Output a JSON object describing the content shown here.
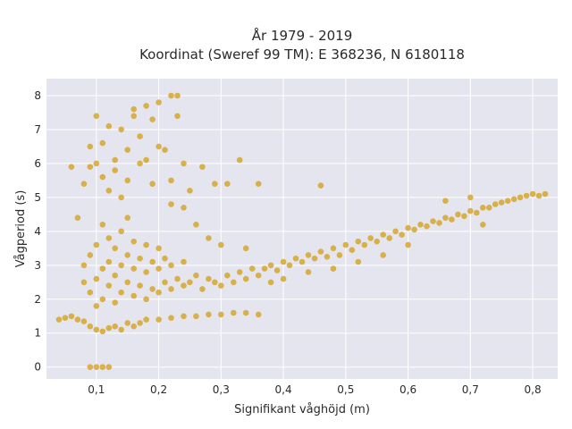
{
  "chart_data": {
    "type": "scatter",
    "title": "År 1979 - 2019",
    "subtitle": "Koordinat (Sweref 99 TM): E 368236, N 6180118",
    "xlabel": "Signifikant våghöjd (m)",
    "ylabel": "Vågperiod (s)",
    "xlim": [
      0.02,
      0.84
    ],
    "ylim": [
      -0.35,
      8.5
    ],
    "x_ticks": [
      0.1,
      0.2,
      0.3,
      0.4,
      0.5,
      0.6,
      0.7,
      0.8
    ],
    "x_tick_labels": [
      "0,1",
      "0,2",
      "0,3",
      "0,4",
      "0,5",
      "0,6",
      "0,7",
      "0,8"
    ],
    "y_ticks": [
      0,
      1,
      2,
      3,
      4,
      5,
      6,
      7,
      8
    ],
    "y_tick_labels": [
      "0",
      "1",
      "2",
      "3",
      "4",
      "5",
      "6",
      "7",
      "8"
    ],
    "grid": true,
    "legend": "none",
    "colors": {
      "marker": "#d4a21f",
      "plot_bg": "#e5e5ef",
      "grid": "#ffffff"
    },
    "series": [
      {
        "points": [
          [
            0.04,
            1.4
          ],
          [
            0.05,
            1.45
          ],
          [
            0.06,
            1.5
          ],
          [
            0.07,
            1.4
          ],
          [
            0.08,
            1.35
          ],
          [
            0.06,
            5.9
          ],
          [
            0.09,
            1.2
          ],
          [
            0.1,
            1.1
          ],
          [
            0.11,
            1.05
          ],
          [
            0.12,
            1.15
          ],
          [
            0.13,
            1.2
          ],
          [
            0.14,
            1.1
          ],
          [
            0.15,
            1.3
          ],
          [
            0.16,
            1.2
          ],
          [
            0.17,
            1.3
          ],
          [
            0.18,
            1.4
          ],
          [
            0.2,
            1.4
          ],
          [
            0.22,
            1.45
          ],
          [
            0.24,
            1.5
          ],
          [
            0.26,
            1.5
          ],
          [
            0.28,
            1.55
          ],
          [
            0.3,
            1.55
          ],
          [
            0.32,
            1.6
          ],
          [
            0.34,
            1.6
          ],
          [
            0.36,
            1.55
          ],
          [
            0.08,
            2.5
          ],
          [
            0.08,
            3.0
          ],
          [
            0.09,
            2.2
          ],
          [
            0.09,
            3.3
          ],
          [
            0.1,
            1.8
          ],
          [
            0.1,
            2.6
          ],
          [
            0.1,
            3.6
          ],
          [
            0.11,
            2.0
          ],
          [
            0.11,
            2.9
          ],
          [
            0.11,
            4.2
          ],
          [
            0.12,
            2.4
          ],
          [
            0.12,
            3.1
          ],
          [
            0.12,
            3.8
          ],
          [
            0.13,
            1.9
          ],
          [
            0.13,
            2.7
          ],
          [
            0.13,
            3.5
          ],
          [
            0.14,
            2.2
          ],
          [
            0.14,
            3.0
          ],
          [
            0.14,
            4.0
          ],
          [
            0.15,
            2.5
          ],
          [
            0.15,
            3.3
          ],
          [
            0.15,
            4.4
          ],
          [
            0.16,
            2.1
          ],
          [
            0.16,
            2.9
          ],
          [
            0.16,
            3.7
          ],
          [
            0.17,
            2.4
          ],
          [
            0.17,
            3.2
          ],
          [
            0.18,
            2.0
          ],
          [
            0.18,
            2.8
          ],
          [
            0.18,
            3.6
          ],
          [
            0.19,
            2.3
          ],
          [
            0.19,
            3.1
          ],
          [
            0.2,
            2.2
          ],
          [
            0.2,
            2.9
          ],
          [
            0.2,
            3.5
          ],
          [
            0.21,
            2.5
          ],
          [
            0.21,
            3.2
          ],
          [
            0.22,
            2.3
          ],
          [
            0.22,
            3.0
          ],
          [
            0.23,
            2.6
          ],
          [
            0.24,
            2.4
          ],
          [
            0.24,
            3.1
          ],
          [
            0.25,
            2.5
          ],
          [
            0.26,
            2.7
          ],
          [
            0.27,
            2.3
          ],
          [
            0.28,
            2.6
          ],
          [
            0.29,
            2.5
          ],
          [
            0.3,
            2.4
          ],
          [
            0.31,
            2.7
          ],
          [
            0.32,
            2.5
          ],
          [
            0.33,
            2.8
          ],
          [
            0.34,
            2.6
          ],
          [
            0.35,
            2.9
          ],
          [
            0.36,
            2.7
          ],
          [
            0.07,
            4.4
          ],
          [
            0.08,
            5.4
          ],
          [
            0.09,
            5.9
          ],
          [
            0.09,
            6.5
          ],
          [
            0.1,
            7.4
          ],
          [
            0.1,
            6.0
          ],
          [
            0.11,
            6.6
          ],
          [
            0.11,
            5.6
          ],
          [
            0.12,
            7.1
          ],
          [
            0.12,
            5.2
          ],
          [
            0.13,
            6.1
          ],
          [
            0.13,
            5.8
          ],
          [
            0.14,
            7.0
          ],
          [
            0.14,
            5.0
          ],
          [
            0.15,
            6.4
          ],
          [
            0.15,
            5.5
          ],
          [
            0.16,
            7.4
          ],
          [
            0.16,
            7.6
          ],
          [
            0.17,
            6.8
          ],
          [
            0.17,
            6.0
          ],
          [
            0.18,
            7.7
          ],
          [
            0.18,
            6.1
          ],
          [
            0.19,
            7.3
          ],
          [
            0.19,
            5.4
          ],
          [
            0.2,
            7.8
          ],
          [
            0.2,
            6.5
          ],
          [
            0.21,
            6.4
          ],
          [
            0.22,
            8.0
          ],
          [
            0.23,
            8.0
          ],
          [
            0.23,
            7.4
          ],
          [
            0.22,
            5.5
          ],
          [
            0.24,
            6.0
          ],
          [
            0.25,
            5.2
          ],
          [
            0.27,
            5.9
          ],
          [
            0.29,
            5.4
          ],
          [
            0.31,
            5.4
          ],
          [
            0.33,
            6.1
          ],
          [
            0.26,
            4.2
          ],
          [
            0.28,
            3.8
          ],
          [
            0.22,
            4.8
          ],
          [
            0.24,
            4.7
          ],
          [
            0.36,
            5.4
          ],
          [
            0.46,
            5.35
          ],
          [
            0.3,
            3.6
          ],
          [
            0.34,
            3.5
          ],
          [
            0.37,
            2.9
          ],
          [
            0.38,
            3.0
          ],
          [
            0.39,
            2.85
          ],
          [
            0.4,
            3.1
          ],
          [
            0.41,
            3.0
          ],
          [
            0.42,
            3.2
          ],
          [
            0.43,
            3.1
          ],
          [
            0.44,
            3.3
          ],
          [
            0.45,
            3.2
          ],
          [
            0.46,
            3.4
          ],
          [
            0.47,
            3.25
          ],
          [
            0.48,
            3.5
          ],
          [
            0.49,
            3.3
          ],
          [
            0.5,
            3.6
          ],
          [
            0.51,
            3.45
          ],
          [
            0.52,
            3.7
          ],
          [
            0.53,
            3.6
          ],
          [
            0.54,
            3.8
          ],
          [
            0.55,
            3.7
          ],
          [
            0.56,
            3.9
          ],
          [
            0.57,
            3.8
          ],
          [
            0.58,
            4.0
          ],
          [
            0.59,
            3.9
          ],
          [
            0.6,
            4.1
          ],
          [
            0.61,
            4.05
          ],
          [
            0.62,
            4.2
          ],
          [
            0.63,
            4.15
          ],
          [
            0.64,
            4.3
          ],
          [
            0.65,
            4.25
          ],
          [
            0.66,
            4.4
          ],
          [
            0.67,
            4.35
          ],
          [
            0.68,
            4.5
          ],
          [
            0.69,
            4.45
          ],
          [
            0.7,
            4.6
          ],
          [
            0.71,
            4.55
          ],
          [
            0.72,
            4.7
          ],
          [
            0.73,
            4.7
          ],
          [
            0.74,
            4.8
          ],
          [
            0.75,
            4.85
          ],
          [
            0.76,
            4.9
          ],
          [
            0.77,
            4.95
          ],
          [
            0.78,
            5.0
          ],
          [
            0.79,
            5.05
          ],
          [
            0.8,
            5.1
          ],
          [
            0.81,
            5.05
          ],
          [
            0.82,
            5.1
          ],
          [
            0.66,
            4.9
          ],
          [
            0.7,
            5.0
          ],
          [
            0.72,
            4.2
          ],
          [
            0.6,
            3.6
          ],
          [
            0.56,
            3.3
          ],
          [
            0.52,
            3.1
          ],
          [
            0.48,
            2.9
          ],
          [
            0.44,
            2.8
          ],
          [
            0.4,
            2.6
          ],
          [
            0.38,
            2.5
          ],
          [
            0.09,
            0.0
          ],
          [
            0.1,
            0.0
          ],
          [
            0.11,
            0.0
          ],
          [
            0.12,
            0.0
          ]
        ]
      }
    ]
  }
}
